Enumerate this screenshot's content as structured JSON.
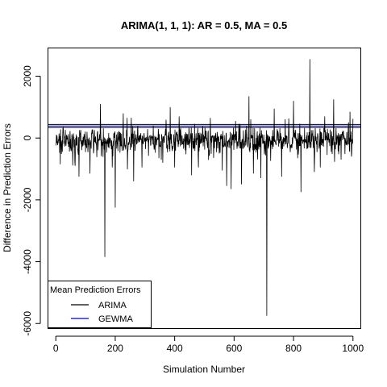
{
  "chart_data": {
    "type": "line",
    "title": "ARIMA(1, 1, 1): AR = 0.5, MA = 0.5",
    "xlabel": "Simulation Number",
    "ylabel": "Difference in Prediction Errors",
    "xlim": [
      -25,
      1025
    ],
    "ylim": [
      -6150,
      2900
    ],
    "xticks": [
      0,
      200,
      400,
      600,
      800,
      1000
    ],
    "yticks": [
      -6000,
      -4000,
      -2000,
      0,
      2000
    ],
    "grid": false,
    "series": [
      {
        "name": "ARIMA",
        "type": "spike-line",
        "color": "#000000",
        "n_points": 1000,
        "noise_seed": 7,
        "baseline_mean": -60,
        "baseline_sd": 200,
        "spikes": [
          {
            "x": 15,
            "y": -850
          },
          {
            "x": 65,
            "y": -900
          },
          {
            "x": 78,
            "y": -1250
          },
          {
            "x": 115,
            "y": -1150
          },
          {
            "x": 150,
            "y": 1100
          },
          {
            "x": 165,
            "y": -3850
          },
          {
            "x": 190,
            "y": -950
          },
          {
            "x": 200,
            "y": -2250
          },
          {
            "x": 240,
            "y": 650
          },
          {
            "x": 262,
            "y": -1400
          },
          {
            "x": 290,
            "y": -950
          },
          {
            "x": 360,
            "y": -800
          },
          {
            "x": 385,
            "y": 1000
          },
          {
            "x": 400,
            "y": -950
          },
          {
            "x": 415,
            "y": 700
          },
          {
            "x": 480,
            "y": -950
          },
          {
            "x": 520,
            "y": 650
          },
          {
            "x": 560,
            "y": -1050
          },
          {
            "x": 575,
            "y": -1550
          },
          {
            "x": 590,
            "y": -1650
          },
          {
            "x": 605,
            "y": 550
          },
          {
            "x": 625,
            "y": -1500
          },
          {
            "x": 650,
            "y": 1350
          },
          {
            "x": 665,
            "y": -1150
          },
          {
            "x": 690,
            "y": -1300
          },
          {
            "x": 710,
            "y": -5750
          },
          {
            "x": 735,
            "y": 950
          },
          {
            "x": 760,
            "y": -1250
          },
          {
            "x": 800,
            "y": 1200
          },
          {
            "x": 825,
            "y": -1750
          },
          {
            "x": 855,
            "y": 2550
          },
          {
            "x": 870,
            "y": -1100
          },
          {
            "x": 890,
            "y": -950
          },
          {
            "x": 905,
            "y": 700
          },
          {
            "x": 935,
            "y": 1250
          },
          {
            "x": 960,
            "y": -700
          },
          {
            "x": 990,
            "y": 850
          },
          {
            "x": 995,
            "y": -600
          }
        ]
      },
      {
        "name": "Mean Prediction Errors",
        "type": "hlines",
        "color": "#000000",
        "values": [
          340,
          440
        ]
      },
      {
        "name": "GEWMA",
        "type": "hline",
        "color": "#0000cc",
        "value": 390
      }
    ],
    "legend": {
      "title": "Mean Prediction Errors",
      "position": "bottom-left",
      "entries": [
        {
          "label": "ARIMA",
          "color": "#000000"
        },
        {
          "label": "GEWMA",
          "color": "#0000cc"
        }
      ]
    }
  }
}
